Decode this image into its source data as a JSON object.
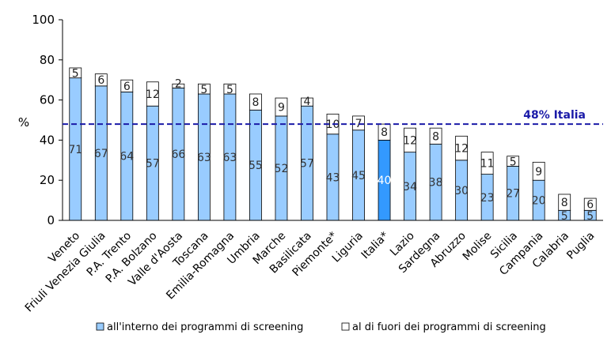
{
  "chart_data": {
    "type": "bar",
    "stacked": true,
    "ylabel": "%",
    "ylim": [
      0,
      100
    ],
    "yticks": [
      "0",
      "20",
      "40",
      "60",
      "80",
      "100"
    ],
    "grid": false,
    "categories": [
      "Veneto",
      "Friuli Venezia Giulia",
      "P.A. Trento",
      "P.A. Bolzano",
      "Valle d'Aosta",
      "Toscana",
      "Emilia-Romagna",
      "Umbria",
      "Marche",
      "Basilicata",
      "Piemonte*",
      "Liguria",
      "Italia*",
      "Lazio",
      "Sardegna",
      "Abruzzo",
      "Molise",
      "Sicilia",
      "Campania",
      "Calabria",
      "Puglia"
    ],
    "series": [
      {
        "name": "all'interno dei programmi di screening",
        "color": "#99ccff",
        "highlight_color": "#3399ff",
        "values": [
          71,
          67,
          64,
          57,
          66,
          63,
          63,
          55,
          52,
          57,
          43,
          45,
          40,
          34,
          38,
          30,
          23,
          27,
          20,
          5,
          5
        ]
      },
      {
        "name": "al di fuori dei programmi di screening",
        "color": "#ffffff",
        "values": [
          5,
          6,
          6,
          12,
          2,
          5,
          5,
          8,
          9,
          4,
          10,
          7,
          8,
          12,
          8,
          12,
          11,
          5,
          9,
          8,
          6
        ]
      }
    ],
    "highlight_category": "Italia*",
    "reference_line": {
      "value": 48,
      "label": "48% Italia",
      "color": "#1a1aa8",
      "style": "dashed"
    },
    "legend_position": "bottom"
  }
}
